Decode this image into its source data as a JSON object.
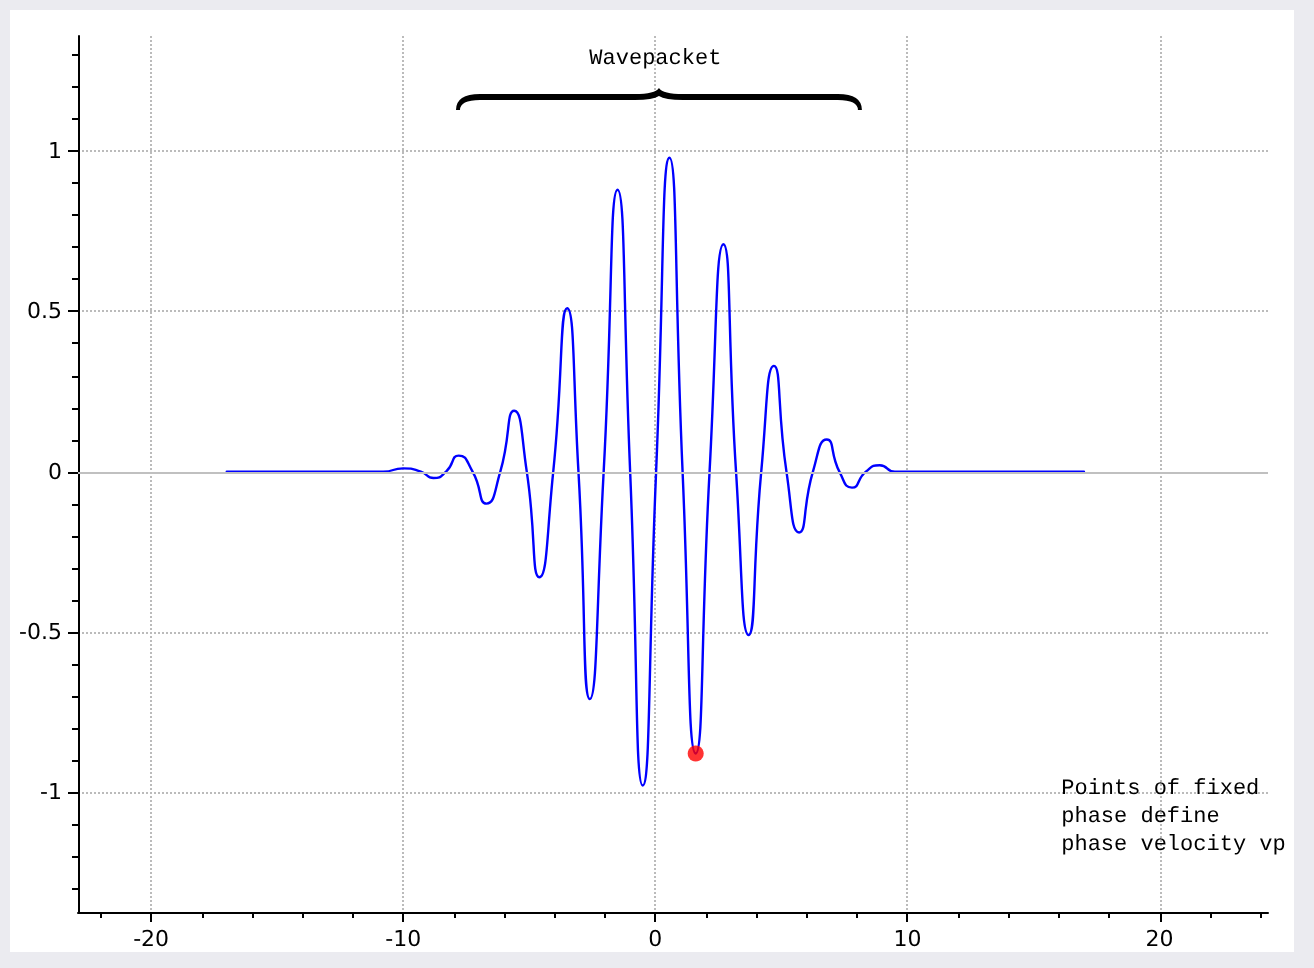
{
  "chart_data": {
    "type": "line",
    "xlim": [
      -22.9,
      24.3
    ],
    "ylim": [
      -1.375,
      1.36
    ],
    "xticks": [
      -20,
      -10,
      0,
      10,
      20
    ],
    "yticks": [
      -1,
      -0.5,
      0,
      0.5,
      1
    ],
    "grid": true,
    "marker": "none",
    "line_style": "solid",
    "annotations": [
      "Wavepacket",
      "Points of fixed\nphase define\nphase velocity vp"
    ],
    "ref_lines": [
      {
        "axis": "y",
        "value": 0,
        "color": "#c0c0c0"
      }
    ],
    "series": [
      {
        "color": "#0000ff",
        "x": [
          -17,
          -12,
          -10.8,
          -10,
          -9.3,
          -8.8,
          -8.3,
          -7.8,
          -7.25,
          -6.7,
          -6.15,
          -5.6,
          -5.1,
          -4.6,
          -4.05,
          -3.5,
          -3.05,
          -2.6,
          -2.05,
          -1.5,
          -1,
          -0.5,
          0.03,
          0.56,
          1.08,
          1.6,
          2.15,
          2.7,
          3.2,
          3.7,
          4.2,
          4.7,
          5.2,
          5.7,
          6.25,
          6.8,
          7.3,
          7.8,
          8.35,
          8.9,
          9.5,
          10.5,
          12,
          17
        ],
        "values": [
          0,
          0,
          0,
          0.01,
          0,
          -0.02,
          0,
          0.05,
          0,
          -0.1,
          0,
          0.19,
          0,
          -0.33,
          0,
          0.51,
          0,
          -0.71,
          0,
          0.88,
          0,
          -0.98,
          0,
          0.98,
          0,
          -0.88,
          0,
          0.71,
          0,
          -0.51,
          0,
          0.33,
          0,
          -0.19,
          0,
          0.1,
          0,
          -0.05,
          0,
          0.02,
          0,
          0,
          0,
          0
        ]
      },
      {
        "type": "scatter",
        "color": "#ff0000",
        "marker": "circle",
        "x": [
          1.6
        ],
        "values": [
          -0.88
        ]
      }
    ]
  }
}
